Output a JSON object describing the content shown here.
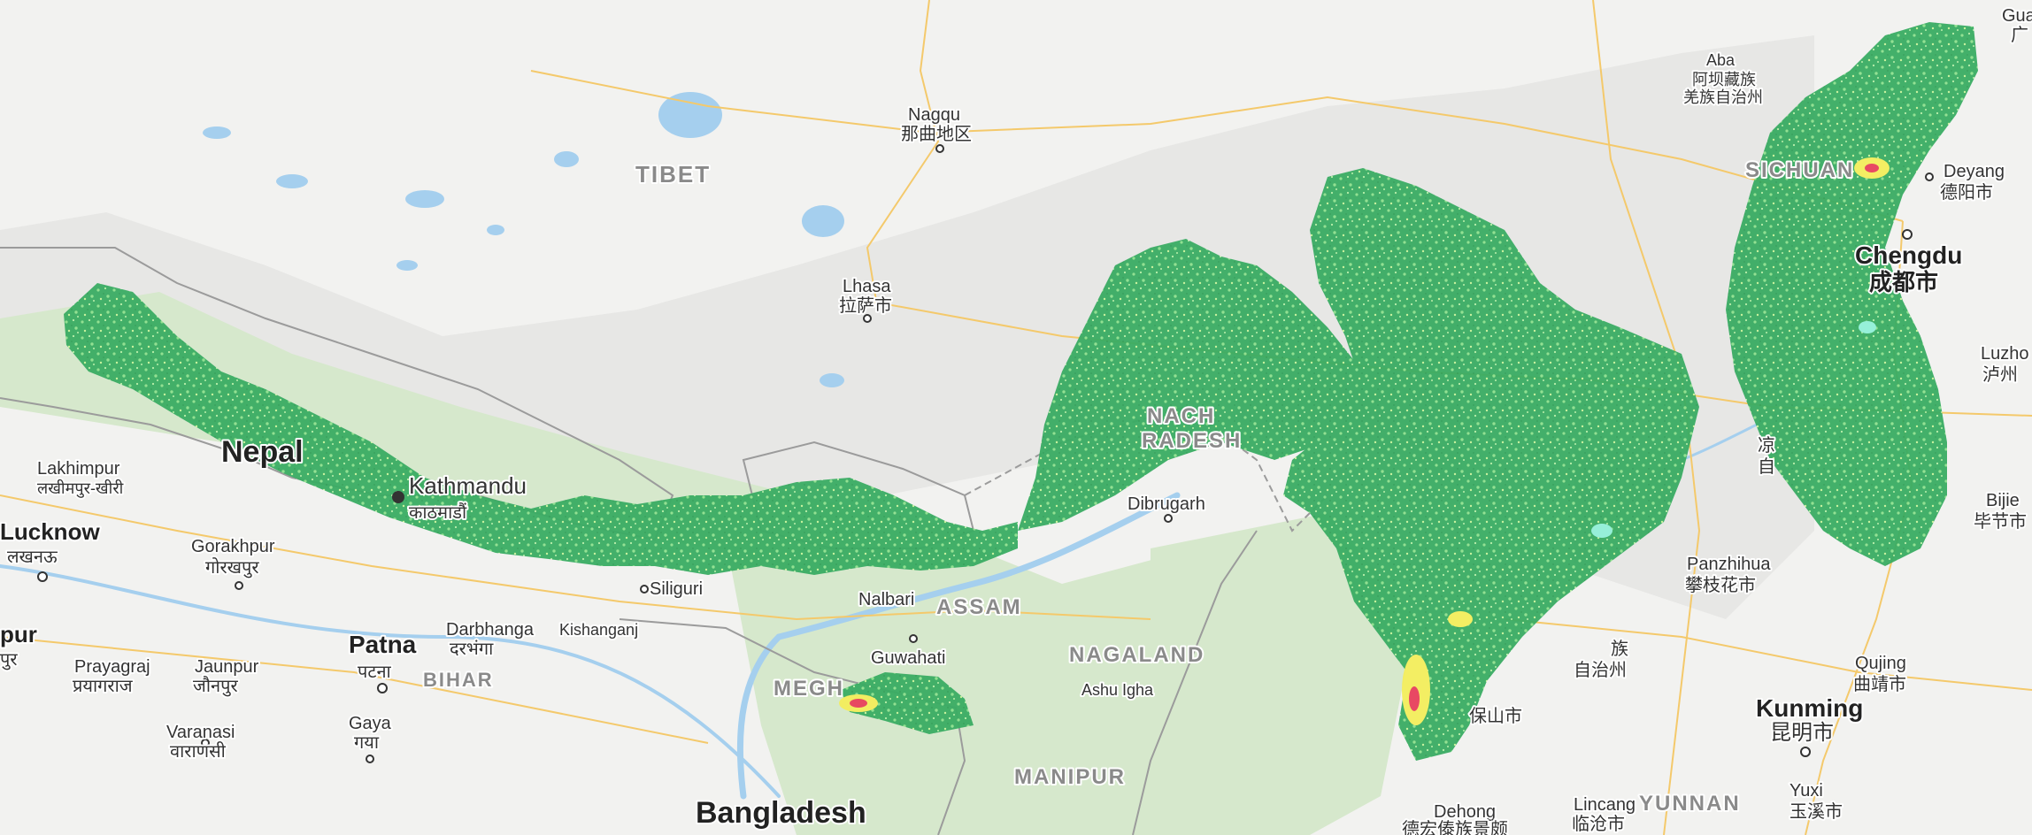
{
  "colors": {
    "land": "#f2f2f0",
    "plateau": "#e6e6e4",
    "water": "#a5cfee",
    "road": "#f4c96b",
    "border": "#9b9b9b",
    "forest": "#cfe3c4",
    "overlay_green": "#3aac63",
    "overlay_light": "#8ee08e",
    "overlay_yellow": "#f4ee5c",
    "overlay_red": "#e8415c",
    "overlay_cyan": "#92f0d8"
  },
  "regions": {
    "tibet": "TIBET",
    "assam": "ASSAM",
    "nagaland": "NAGALAND",
    "manipur": "MANIPUR",
    "bihar": "BIHAR",
    "yunnan": "YUNNAN",
    "sichuan": "SICHUAN",
    "arunachal_1": "NACH",
    "arunachal_2": "RADESH",
    "meghalaya": "MEGH"
  },
  "countries": {
    "nepal": "Nepal",
    "bangladesh": "Bangladesh"
  },
  "cities": {
    "nagqu": "Nagqu",
    "nagqu_local": "那曲地区",
    "lhasa": "Lhasa",
    "lhasa_local": "拉萨市",
    "aba_1": "Aba",
    "aba_2": "阿坝藏族",
    "aba_3": "羌族自治州",
    "deyang": "Deyang",
    "deyang_local": "德阳市",
    "chengdu": "Chengdu",
    "chengdu_local": "成都市",
    "luzhou": "Luzho",
    "luzhou_local": "泸州",
    "bijie": "Bijie",
    "bijie_local": "毕节市",
    "lakhimpur": "Lakhimpur",
    "lakhimpur_local": "लखीमपुर-खीरी",
    "kathmandu": "Kathmandu",
    "kathmandu_local": "काठमाडौं",
    "lucknow": "Lucknow",
    "lucknow_local": "लखनऊ",
    "gorakhpur": "Gorakhpur",
    "gorakhpur_local": "गोरखपुर",
    "dibrugarh": "Dibrugarh",
    "siliguri": "Siliguri",
    "nalbari": "Nalbari",
    "darbhanga": "Darbhanga",
    "darbhanga_local": "दरभंगा",
    "kishanganj": "Kishanganj",
    "patna": "Patna",
    "patna_local": "पटना",
    "guwahati": "Guwahati",
    "ashu_igha": "Ashu Igha",
    "prayagraj": "Prayagraj",
    "prayagraj_local": "प्रयागराज",
    "jaunpur": "Jaunpur",
    "jaunpur_local": "जौनपुर",
    "varanasi": "Varanasi",
    "varanasi_local": "वाराणसी",
    "gaya": "Gaya",
    "gaya_local": "गया",
    "pur_edge": "pur",
    "pur_edge_local": "पुर",
    "panzhihua": "Panzhihua",
    "panzhihua_local": "攀枝花市",
    "dali_1": "族",
    "dali_2": "自治州",
    "baoshan": "保山市",
    "dehong": "Dehong",
    "dehong_local": "德宏傣族景颇",
    "lincang": "Lincang",
    "lincang_local": "临沧市",
    "qujing": "Qujing",
    "qujing_local": "曲靖市",
    "kunming": "Kunming",
    "kunming_local": "昆明市",
    "yuxi": "Yuxi",
    "yuxi_local": "玉溪市",
    "gua": "Gua",
    "gua_local": "广",
    "liangshan_1": "凉",
    "liangshan_2": "自"
  }
}
